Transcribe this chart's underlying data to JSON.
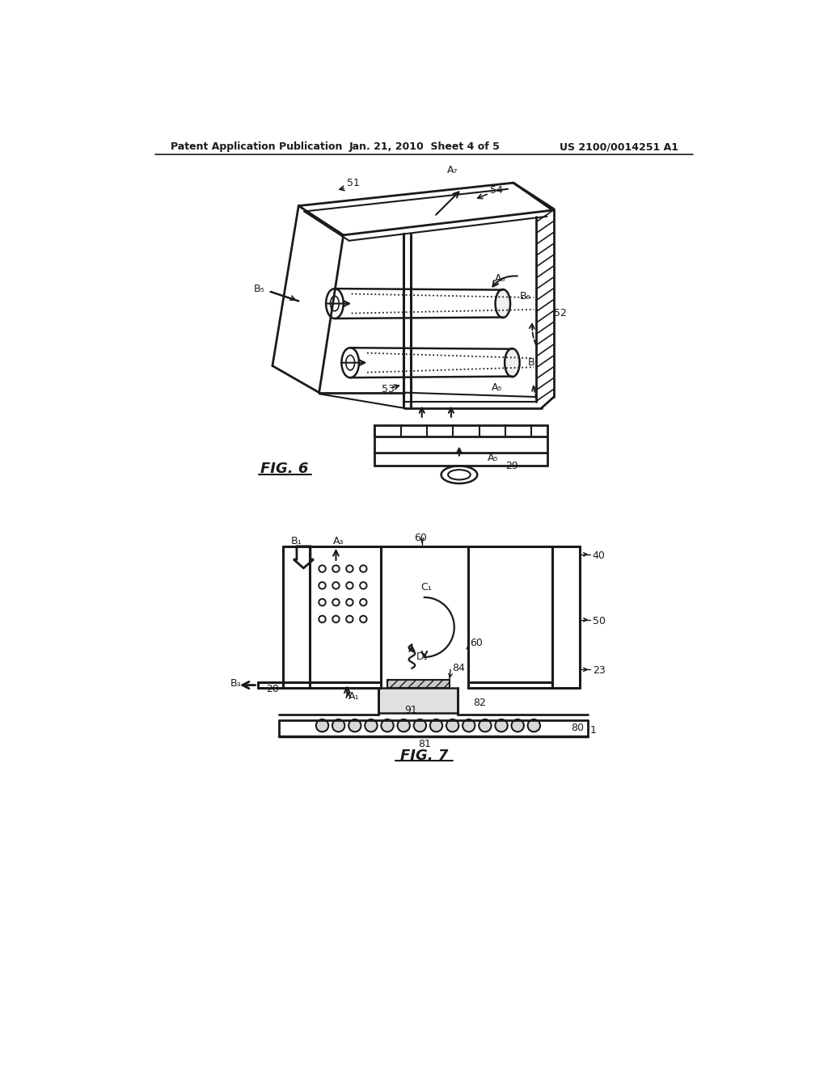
{
  "bg_color": "#ffffff",
  "line_color": "#1a1a1a",
  "header_left": "Patent Application Publication",
  "header_center": "Jan. 21, 2010  Sheet 4 of 5",
  "header_right": "US 2100/0014251 A1",
  "fig6_label": "FIG. 6",
  "fig7_label": "FIG. 7"
}
